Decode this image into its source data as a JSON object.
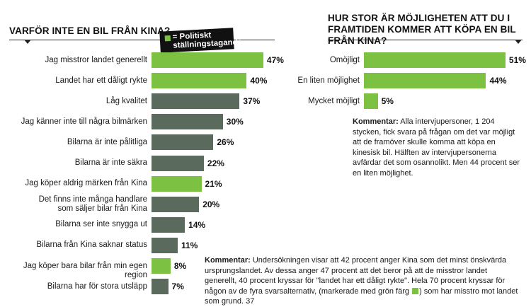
{
  "colors": {
    "political": "#7dc142",
    "other": "#5a6b5e",
    "text": "#1a1a1a"
  },
  "left_chart": {
    "title": "VARFÖR INTE EN BIL FRÅN KINA?",
    "legend": "= Politiskt\nställningstagande",
    "legend_swatch_color": "#7dc142"
  },
  "right_chart": {
    "title_line1": "HUR STOR ÄR MÖJLIGHETEN ATT DU I",
    "title_line2": "FRAMTIDEN KOMMER ATT KÖPA EN BIL FRÅN KINA?"
  },
  "chart_data": [
    {
      "type": "bar",
      "orientation": "horizontal",
      "title": "VARFÖR INTE EN BIL FRÅN KINA?",
      "unit": "%",
      "categories": [
        [
          "Jag misstror landet generellt"
        ],
        [
          "Landet har ett dåligt rykte"
        ],
        [
          "Låg kvalitet"
        ],
        [
          "Jag känner inte till några bilmärken"
        ],
        [
          "Bilarna är inte pålitliga"
        ],
        [
          "Bilarna är inte säkra"
        ],
        [
          "Jag köper aldrig märken från Kina"
        ],
        [
          "Det finns inte många handlare",
          "som säljer bilar från Kina"
        ],
        [
          "Bilarna ser inte snygga ut"
        ],
        [
          "Bilarna från Kina saknar status"
        ],
        [
          "Jag köper bara bilar från min egen region"
        ],
        [
          "Bilarna har för stora utsläpp"
        ]
      ],
      "values": [
        47,
        40,
        37,
        30,
        26,
        22,
        21,
        20,
        14,
        11,
        8,
        7
      ],
      "value_labels": [
        "47%",
        "40%",
        "37%",
        "30%",
        "26%",
        "22%",
        "21%",
        "20%",
        "14%",
        "11%",
        "8%",
        "7%"
      ],
      "political": [
        true,
        true,
        false,
        false,
        false,
        false,
        true,
        false,
        false,
        false,
        true,
        false
      ],
      "legend": "= Politiskt ställningstagande"
    },
    {
      "type": "bar",
      "orientation": "horizontal",
      "title": "HUR STOR ÄR MÖJLIGHETEN ATT DU I FRAMTIDEN KOMMER ATT KÖPA EN BIL FRÅN KINA?",
      "unit": "%",
      "categories": [
        [
          "Omöjligt"
        ],
        [
          "En liten möjlighet"
        ],
        [
          "Mycket möjligt"
        ]
      ],
      "values": [
        51,
        44,
        5
      ],
      "value_labels": [
        "51%",
        "44%",
        "5%"
      ],
      "political": [
        true,
        true,
        true
      ]
    }
  ],
  "comment_right": {
    "label": "Kommentar:",
    "text": " Alla intervjupersoner, 1 204 stycken, fick svara på frågan om det var möjligt att de framöver skulle komma att köpa en kinesisk bil. Hälften av intervjupersonerna avfärdar det som osannolikt. Men 44 procent ser en liten möjlighet."
  },
  "comment_bottom": {
    "label": "Kommentar:",
    "text_before": " Undersökningen visar att 42 procent anger Kina som det minst önskvärda ursprungslandet. Av dessa anger 47 procent att det beror på att de misstror landet generellt, 40 procent kryssar för \"landet har ett dåligt rykte\". Hela 70 procent kryssar för någon av de fyra svarsalternativ, (markerade med grön färg ",
    "text_after": ") som har misstro mot landet som grund. 37"
  }
}
